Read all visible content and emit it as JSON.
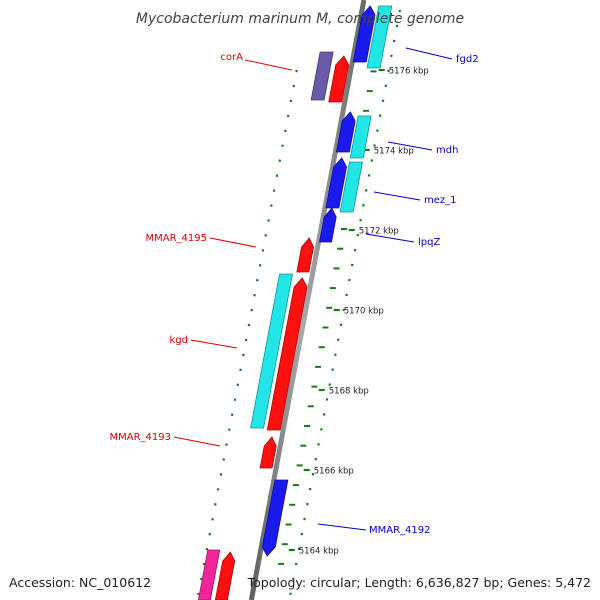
{
  "title": "Mycobacterium marinum M, complete genome",
  "footer": {
    "accession": "Accession: NC_010612",
    "topology": "Topology: circular; Length: 6,636,827 bp; Genes: 5,472"
  },
  "colors": {
    "backbone": "#8c8c8c",
    "ticks": "#1a7a1a",
    "label_red": "#e00000",
    "label_blue": "#0000cc",
    "red": "#ff1010",
    "blue": "#1a1aee",
    "cyan": "#22e6e6",
    "purple": "#6a5aa8",
    "magenta": "#f0259a"
  },
  "ticks": [
    {
      "label": "5176 kbp"
    },
    {
      "label": "5174 kbp"
    },
    {
      "label": "5172 kbp"
    },
    {
      "label": "5170 kbp"
    },
    {
      "label": "5168 kbp"
    },
    {
      "label": "5166 kbp"
    },
    {
      "label": "5164 kbp"
    }
  ],
  "genes": [
    {
      "name": "fgd2",
      "strand": "reverse",
      "color": "blue"
    },
    {
      "name": "mdh",
      "strand": "reverse",
      "color": "blue"
    },
    {
      "name": "mez_1",
      "strand": "reverse",
      "color": "blue"
    },
    {
      "name": "lpqZ",
      "strand": "reverse",
      "color": "blue"
    },
    {
      "name": "corA",
      "strand": "forward",
      "color": "red"
    },
    {
      "name": "MMAR_4195",
      "strand": "forward",
      "color": "red"
    },
    {
      "name": "kgd",
      "strand": "forward",
      "color": "red"
    },
    {
      "name": "MMAR_4193",
      "strand": "forward",
      "color": "red"
    },
    {
      "name": "MMAR_4192",
      "strand": "reverse",
      "color": "blue"
    }
  ]
}
